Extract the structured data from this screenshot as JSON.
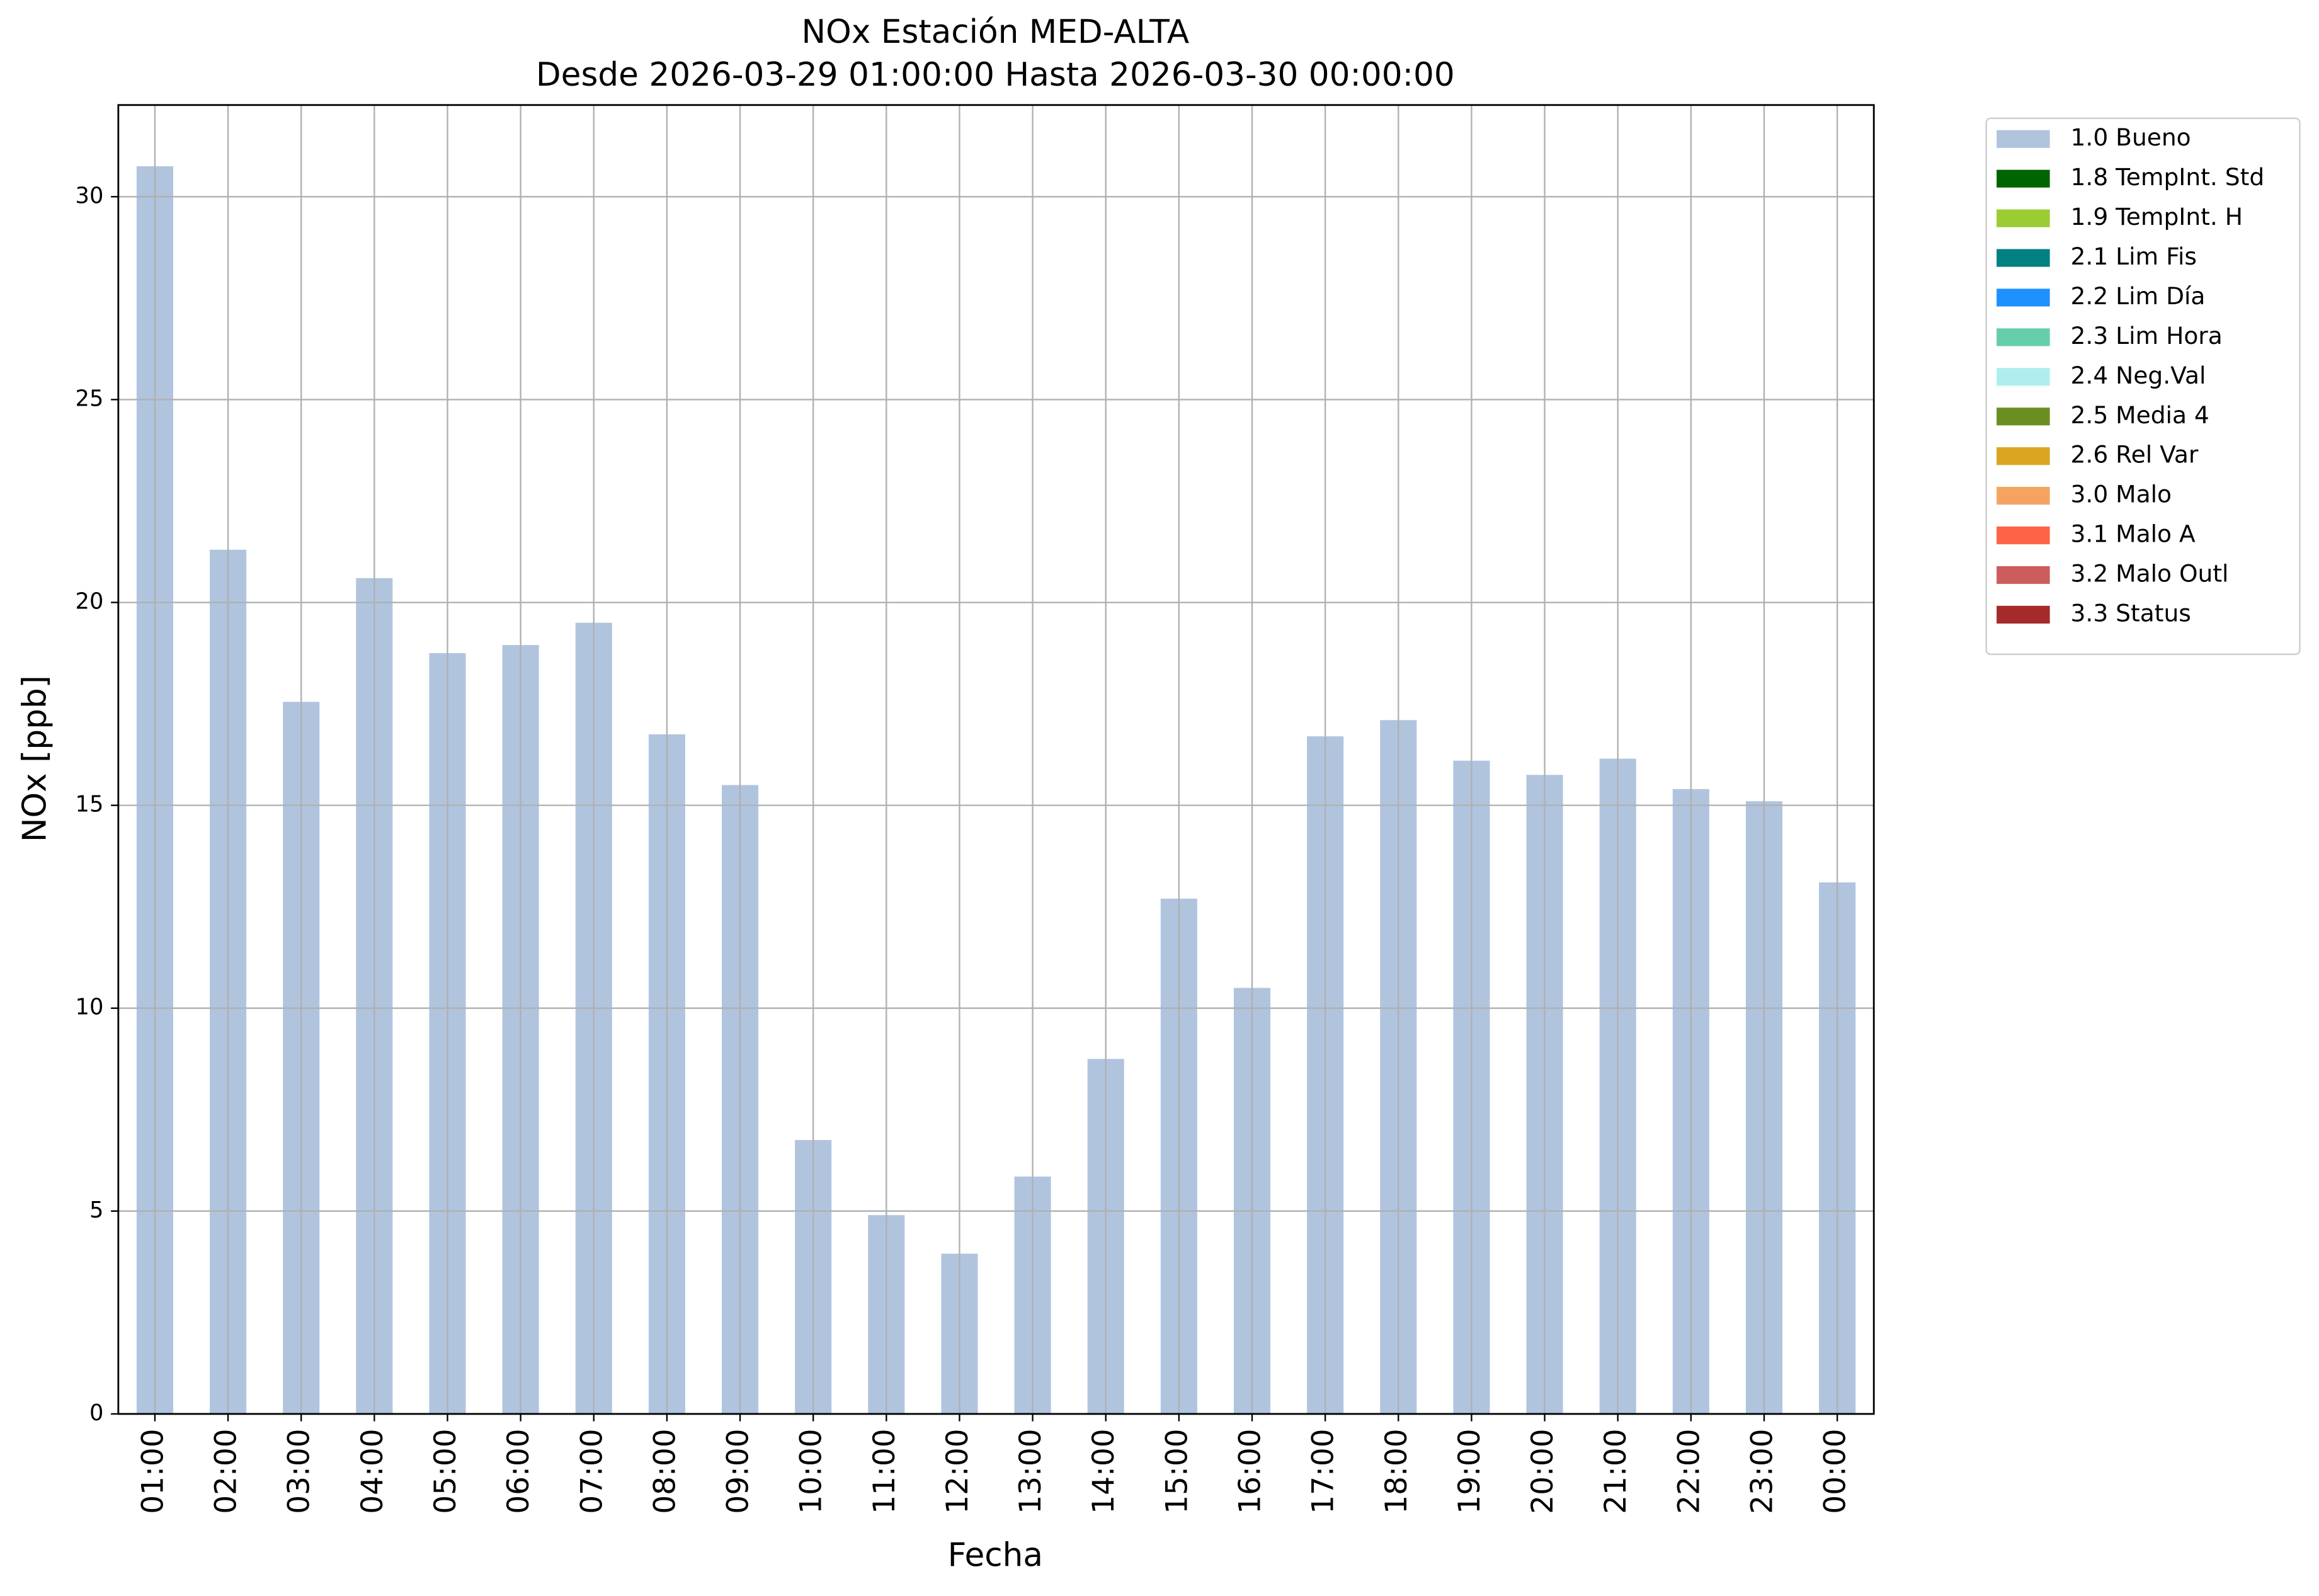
{
  "chart_data": {
    "type": "bar",
    "stacked": true,
    "title": "NOx Estación MED-ALTA",
    "subtitle": "Desde 2026-03-29 01:00:00 Hasta 2026-03-30 00:00:00",
    "x_label": "Fecha",
    "y_label": "NOx [ppb]",
    "categories": [
      "01:00",
      "02:00",
      "03:00",
      "04:00",
      "05:00",
      "06:00",
      "07:00",
      "08:00",
      "09:00",
      "10:00",
      "11:00",
      "12:00",
      "13:00",
      "14:00",
      "15:00",
      "16:00",
      "17:00",
      "18:00",
      "19:00",
      "20:00",
      "21:00",
      "22:00",
      "23:00",
      "00:00"
    ],
    "series": [
      {
        "name": "1.0 Bueno",
        "color": "#b0c4de",
        "values": [
          30.75,
          21.3,
          17.55,
          20.6,
          18.75,
          18.95,
          19.5,
          16.75,
          15.5,
          6.75,
          4.9,
          3.95,
          5.85,
          8.75,
          12.7,
          10.5,
          16.7,
          17.1,
          16.1,
          15.75,
          16.15,
          15.4,
          15.1,
          13.1
        ]
      },
      {
        "name": "1.8 TempInt. Std",
        "color": "#006400",
        "values": [
          0,
          0,
          0,
          0,
          0,
          0,
          0,
          0,
          0,
          0,
          0,
          0,
          0,
          0,
          0,
          0,
          0,
          0,
          0,
          0,
          0,
          0,
          0,
          0
        ]
      },
      {
        "name": "1.9 TempInt. H",
        "color": "#9acd32",
        "values": [
          0,
          0,
          0,
          0,
          0,
          0,
          0,
          0,
          0,
          0,
          0,
          0,
          0,
          0,
          0,
          0,
          0,
          0,
          0,
          0,
          0,
          0,
          0,
          0
        ]
      },
      {
        "name": "2.1 Lim Fis",
        "color": "#008080",
        "values": [
          0,
          0,
          0,
          0,
          0,
          0,
          0,
          0,
          0,
          0,
          0,
          0,
          0,
          0,
          0,
          0,
          0,
          0,
          0,
          0,
          0,
          0,
          0,
          0
        ]
      },
      {
        "name": "2.2 Lim Día",
        "color": "#1e90ff",
        "values": [
          0,
          0,
          0,
          0,
          0,
          0,
          0,
          0,
          0,
          0,
          0,
          0,
          0,
          0,
          0,
          0,
          0,
          0,
          0,
          0,
          0,
          0,
          0,
          0
        ]
      },
      {
        "name": "2.3 Lim Hora",
        "color": "#66cdaa",
        "values": [
          0,
          0,
          0,
          0,
          0,
          0,
          0,
          0,
          0,
          0,
          0,
          0,
          0,
          0,
          0,
          0,
          0,
          0,
          0,
          0,
          0,
          0,
          0,
          0
        ]
      },
      {
        "name": "2.4 Neg.Val",
        "color": "#afeeee",
        "values": [
          0,
          0,
          0,
          0,
          0,
          0,
          0,
          0,
          0,
          0,
          0,
          0,
          0,
          0,
          0,
          0,
          0,
          0,
          0,
          0,
          0,
          0,
          0,
          0
        ]
      },
      {
        "name": "2.5 Media 4",
        "color": "#6b8e23",
        "values": [
          0,
          0,
          0,
          0,
          0,
          0,
          0,
          0,
          0,
          0,
          0,
          0,
          0,
          0,
          0,
          0,
          0,
          0,
          0,
          0,
          0,
          0,
          0,
          0
        ]
      },
      {
        "name": "2.6 Rel Var",
        "color": "#daa520",
        "values": [
          0,
          0,
          0,
          0,
          0,
          0,
          0,
          0,
          0,
          0,
          0,
          0,
          0,
          0,
          0,
          0,
          0,
          0,
          0,
          0,
          0,
          0,
          0,
          0
        ]
      },
      {
        "name": "3.0 Malo",
        "color": "#f4a460",
        "values": [
          0,
          0,
          0,
          0,
          0,
          0,
          0,
          0,
          0,
          0,
          0,
          0,
          0,
          0,
          0,
          0,
          0,
          0,
          0,
          0,
          0,
          0,
          0,
          0
        ]
      },
      {
        "name": "3.1 Malo A",
        "color": "#ff6347",
        "values": [
          0,
          0,
          0,
          0,
          0,
          0,
          0,
          0,
          0,
          0,
          0,
          0,
          0,
          0,
          0,
          0,
          0,
          0,
          0,
          0,
          0,
          0,
          0,
          0
        ]
      },
      {
        "name": "3.2 Malo Outl",
        "color": "#cd5c5c",
        "values": [
          0,
          0,
          0,
          0,
          0,
          0,
          0,
          0,
          0,
          0,
          0,
          0,
          0,
          0,
          0,
          0,
          0,
          0,
          0,
          0,
          0,
          0,
          0,
          0
        ]
      },
      {
        "name": "3.3 Status",
        "color": "#a52a2a",
        "values": [
          0,
          0,
          0,
          0,
          0,
          0,
          0,
          0,
          0,
          0,
          0,
          0,
          0,
          0,
          0,
          0,
          0,
          0,
          0,
          0,
          0,
          0,
          0,
          0
        ]
      }
    ],
    "ylim": [
      0,
      32.26
    ],
    "yticks": [
      0,
      5,
      10,
      15,
      20,
      25,
      30
    ],
    "grid": true,
    "legend": "outside-upper-right"
  }
}
